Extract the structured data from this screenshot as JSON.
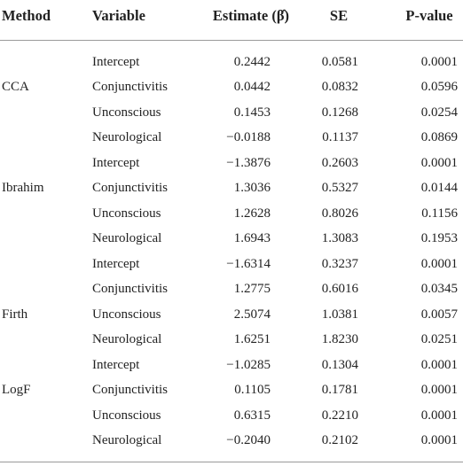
{
  "table": {
    "columns": [
      "Method",
      "Variable",
      "Estimate (β̂)",
      "SE",
      "P-value"
    ],
    "rows": [
      {
        "variable": "Intercept",
        "estimate": "0.2442",
        "se": "0.0581",
        "p": "0.0001"
      },
      {
        "method": "CCA",
        "variable": "Conjunctivitis",
        "estimate": "0.0442",
        "se": "0.0832",
        "p": "0.0596"
      },
      {
        "variable": "Unconscious",
        "estimate": "0.1453",
        "se": "0.1268",
        "p": "0.0254"
      },
      {
        "variable": "Neurological",
        "estimate": "−0.0188",
        "se": "0.1137",
        "p": "0.0869"
      },
      {
        "variable": "Intercept",
        "estimate": "−1.3876",
        "se": "0.2603",
        "p": "0.0001"
      },
      {
        "method": "Ibrahim",
        "variable": "Conjunctivitis",
        "estimate": "1.3036",
        "se": "0.5327",
        "p": "0.0144"
      },
      {
        "variable": "Unconscious",
        "estimate": "1.2628",
        "se": "0.8026",
        "p": "0.1156"
      },
      {
        "variable": "Neurological",
        "estimate": "1.6943",
        "se": "1.3083",
        "p": "0.1953"
      },
      {
        "variable": "Intercept",
        "estimate": "−1.6314",
        "se": "0.3237",
        "p": "0.0001"
      },
      {
        "variable": "Conjunctivitis",
        "estimate": "1.2775",
        "se": "0.6016",
        "p": "0.0345"
      },
      {
        "method": "Firth",
        "variable": "Unconscious",
        "estimate": "2.5074",
        "se": "1.0381",
        "p": "0.0057"
      },
      {
        "variable": "Neurological",
        "estimate": "1.6251",
        "se": "1.8230",
        "p": "0.0251"
      },
      {
        "variable": "Intercept",
        "estimate": "−1.0285",
        "se": "0.1304",
        "p": "0.0001"
      },
      {
        "method": "LogF",
        "variable": "Conjunctivitis",
        "estimate": "0.1105",
        "se": "0.1781",
        "p": "0.0001"
      },
      {
        "variable": "Unconscious",
        "estimate": "0.6315",
        "se": "0.2210",
        "p": "0.0001"
      },
      {
        "variable": "Neurological",
        "estimate": "−0.2040",
        "se": "0.2102",
        "p": "0.0001"
      }
    ]
  }
}
